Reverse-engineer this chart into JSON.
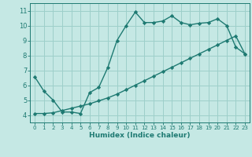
{
  "upper_x": [
    0,
    1,
    2,
    3,
    4,
    5,
    6,
    7,
    8,
    9,
    10,
    11,
    12,
    13,
    14,
    15,
    16,
    17,
    18,
    19,
    20,
    21,
    22,
    23
  ],
  "upper_y": [
    6.55,
    5.6,
    5.0,
    4.2,
    4.2,
    4.1,
    5.5,
    5.85,
    7.2,
    9.0,
    10.0,
    10.9,
    10.2,
    10.2,
    10.3,
    10.65,
    10.2,
    10.05,
    10.15,
    10.2,
    10.45,
    10.0,
    8.55,
    8.1
  ],
  "lower_x": [
    0,
    1,
    2,
    3,
    4,
    5,
    6,
    7,
    8,
    9,
    10,
    11,
    12,
    13,
    14,
    15,
    16,
    17,
    18,
    19,
    20,
    21,
    22,
    23
  ],
  "lower_y": [
    4.1,
    4.1,
    4.15,
    4.3,
    4.45,
    4.6,
    4.75,
    4.95,
    5.15,
    5.4,
    5.7,
    6.0,
    6.3,
    6.6,
    6.9,
    7.2,
    7.5,
    7.8,
    8.1,
    8.4,
    8.7,
    9.0,
    9.3,
    8.1
  ],
  "line_color": "#1e7a72",
  "bg_color": "#c5e8e4",
  "grid_color": "#9dcfca",
  "xlabel": "Humidex (Indice chaleur)",
  "xlim_min": -0.5,
  "xlim_max": 23.5,
  "ylim_min": 3.5,
  "ylim_max": 11.5,
  "yticks": [
    4,
    5,
    6,
    7,
    8,
    9,
    10,
    11
  ],
  "xticks": [
    0,
    1,
    2,
    3,
    4,
    5,
    6,
    7,
    8,
    9,
    10,
    11,
    12,
    13,
    14,
    15,
    16,
    17,
    18,
    19,
    20,
    21,
    22,
    23
  ],
  "marker": "D",
  "marker_size": 2.2,
  "line_width": 1.0,
  "xlabel_fontsize": 6.5,
  "tick_fontsize_x": 5.0,
  "tick_fontsize_y": 6.0
}
